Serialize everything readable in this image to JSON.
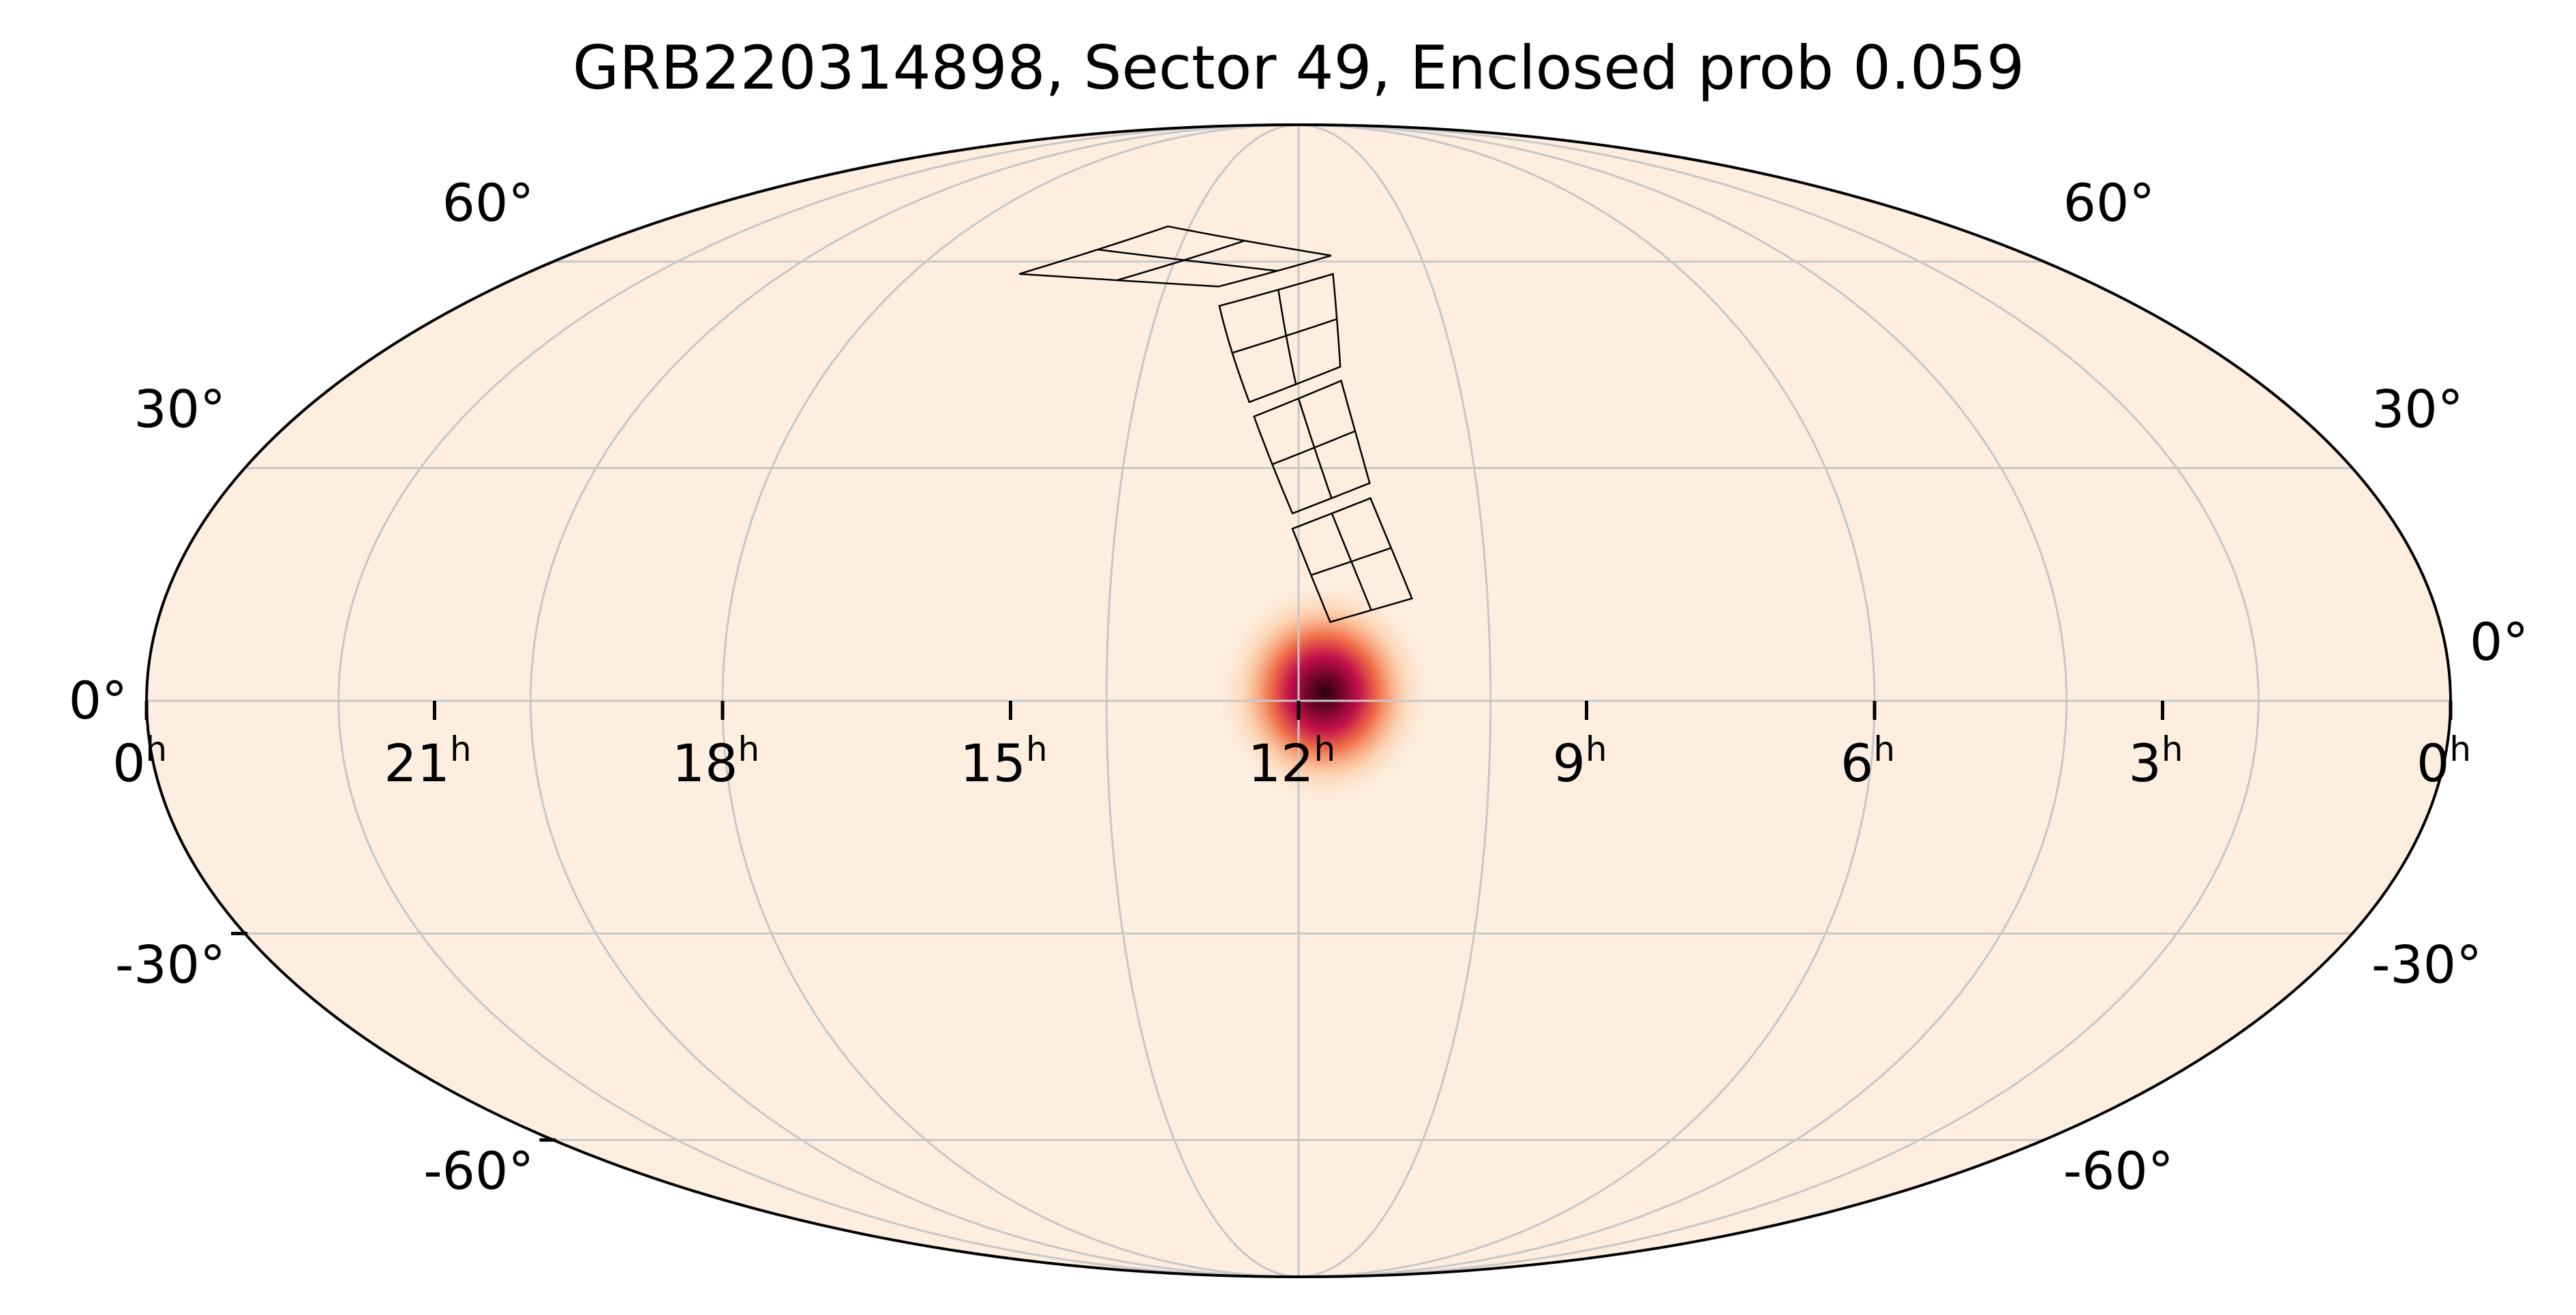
{
  "figure": {
    "title": "GRB220314898, Sector 49, Enclosed prob 0.059",
    "projection": "mollweide",
    "ra_direction": "increasing-left",
    "grid": true,
    "colors": {
      "sky_background": "#fdeee0",
      "grid": "#c8c8c8",
      "footprint": "#000000",
      "probability_low": "#fdeee0",
      "probability_mid": "#f06a40",
      "probability_high": "#c2104a",
      "probability_peak": "#2a0010"
    }
  },
  "ra_labels": [
    {
      "ra_h": 24,
      "label": "0",
      "unit": "h"
    },
    {
      "ra_h": 21,
      "label": "21",
      "unit": "h"
    },
    {
      "ra_h": 18,
      "label": "18",
      "unit": "h"
    },
    {
      "ra_h": 15,
      "label": "15",
      "unit": "h"
    },
    {
      "ra_h": 12,
      "label": "12",
      "unit": "h"
    },
    {
      "ra_h": 9,
      "label": "9",
      "unit": "h"
    },
    {
      "ra_h": 6,
      "label": "6",
      "unit": "h"
    },
    {
      "ra_h": 3,
      "label": "3",
      "unit": "h"
    },
    {
      "ra_h": 0,
      "label": "0",
      "unit": "h"
    }
  ],
  "dec_labels": [
    {
      "dec": 60,
      "label": "60°"
    },
    {
      "dec": 30,
      "label": "30°"
    },
    {
      "dec": 0,
      "label": "0°"
    },
    {
      "dec": -30,
      "label": "-30°"
    },
    {
      "dec": -60,
      "label": "-60°"
    }
  ],
  "probability_peak": {
    "ra_deg": 176,
    "dec_deg": 1,
    "sigma_deg": 5
  },
  "sector_footprint": {
    "sector": 49,
    "cameras": [
      {
        "name": "camera-1",
        "corners": [
          [
            175,
            10
          ],
          [
            162,
            13
          ],
          [
            168,
            26
          ],
          [
            181,
            22
          ]
        ]
      },
      {
        "name": "camera-2",
        "corners": [
          [
            181,
            24
          ],
          [
            168,
            28
          ],
          [
            172,
            42
          ],
          [
            188,
            37
          ]
        ]
      },
      {
        "name": "camera-3",
        "corners": [
          [
            189,
            39
          ],
          [
            172,
            44
          ],
          [
            172,
            58
          ],
          [
            197,
            53
          ]
        ]
      },
      {
        "name": "camera-4",
        "corners": [
          [
            198,
            56
          ],
          [
            172,
            61
          ],
          [
            216,
            66
          ],
          [
            245,
            58
          ]
        ]
      }
    ]
  }
}
